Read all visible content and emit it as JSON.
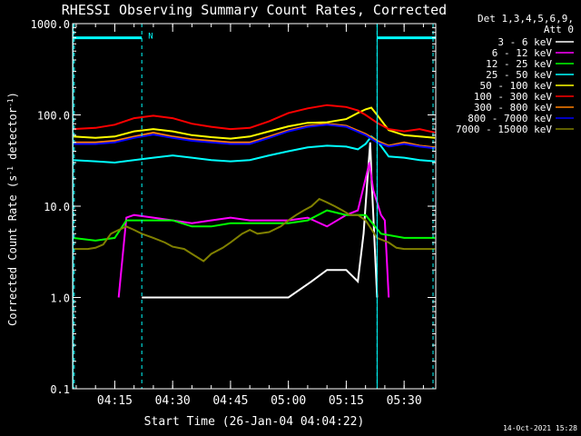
{
  "chart_data": {
    "type": "line",
    "title": "RHESSI Observing Summary Count Rates, Corrected",
    "xlabel": "Start Time (26-Jan-04 04:04:22)",
    "ylabel": "Corrected Count Rate (s⁻¹ detector⁻¹)",
    "ylabel_parts": [
      "Corrected Count Rate (s",
      "-1",
      " detector",
      "-1",
      ")"
    ],
    "y_scale": "log",
    "ylim": [
      0.1,
      1000
    ],
    "y_ticks": [
      0.1,
      1.0,
      10.0,
      100.0,
      1000.0
    ],
    "y_tick_labels": [
      "0.1",
      "1.0",
      "10.0",
      "100.0",
      "1000.0"
    ],
    "xlim_minutes": [
      4.07,
      98.2
    ],
    "x_ticks": [
      "04:15",
      "04:30",
      "04:45",
      "05:00",
      "05:15",
      "05:30"
    ],
    "x_tick_minutes": [
      15,
      30,
      45,
      60,
      75,
      90
    ],
    "legend_header": [
      "Det 1,3,4,5,6,9,",
      "Att 0"
    ],
    "flag_label": "N",
    "flag_bars_minutes": [
      [
        4.07,
        22
      ],
      [
        83,
        98.2
      ]
    ],
    "flag_level": 700,
    "dashed_markers_minutes": [
      4.5,
      22,
      83,
      97.5
    ],
    "solid_markers_minutes": [
      4.2,
      83
    ],
    "footer_stamp": "14-Oct-2021 15:28",
    "grid": false,
    "legend_position": "top-right",
    "series": [
      {
        "name": "3 - 6 keV",
        "color": "#ffffff",
        "points": [
          [
            22,
            1
          ],
          [
            30,
            1
          ],
          [
            45,
            1
          ],
          [
            60,
            1
          ],
          [
            66,
            1.5
          ],
          [
            70,
            2
          ],
          [
            75,
            2
          ],
          [
            78,
            1.5
          ],
          [
            79.5,
            5
          ],
          [
            80.5,
            20
          ],
          [
            81.2,
            50
          ],
          [
            81.6,
            18
          ],
          [
            82,
            8
          ],
          [
            83,
            1
          ]
        ]
      },
      {
        "name": "6 - 12 keV",
        "color": "#ff00ff",
        "points": [
          [
            16,
            1
          ],
          [
            18,
            7.5
          ],
          [
            20,
            8
          ],
          [
            25,
            7.5
          ],
          [
            30,
            7
          ],
          [
            35,
            6.5
          ],
          [
            40,
            7
          ],
          [
            45,
            7.5
          ],
          [
            50,
            7
          ],
          [
            55,
            7
          ],
          [
            60,
            7
          ],
          [
            65,
            7.5
          ],
          [
            70,
            6
          ],
          [
            75,
            8
          ],
          [
            78,
            9
          ],
          [
            80,
            20
          ],
          [
            81,
            30
          ],
          [
            82,
            15
          ],
          [
            84,
            8
          ],
          [
            85,
            7
          ],
          [
            86,
            1
          ]
        ]
      },
      {
        "name": "12 - 25 keV",
        "color": "#00ff00",
        "points": [
          [
            4.1,
            4.5
          ],
          [
            10,
            4.2
          ],
          [
            15,
            4.5
          ],
          [
            18,
            7
          ],
          [
            20,
            7
          ],
          [
            25,
            7
          ],
          [
            30,
            7
          ],
          [
            35,
            6
          ],
          [
            40,
            6
          ],
          [
            45,
            6.5
          ],
          [
            50,
            6.5
          ],
          [
            55,
            6.5
          ],
          [
            60,
            6.5
          ],
          [
            65,
            7
          ],
          [
            70,
            9
          ],
          [
            75,
            8
          ],
          [
            80,
            8
          ],
          [
            84,
            5
          ],
          [
            90,
            4.5
          ],
          [
            98,
            4.5
          ]
        ]
      },
      {
        "name": "25 - 50 keV",
        "color": "#00ffff",
        "points": [
          [
            4.1,
            32
          ],
          [
            10,
            31
          ],
          [
            15,
            30
          ],
          [
            20,
            32
          ],
          [
            25,
            34
          ],
          [
            30,
            36
          ],
          [
            35,
            34
          ],
          [
            40,
            32
          ],
          [
            45,
            31
          ],
          [
            50,
            32
          ],
          [
            55,
            36
          ],
          [
            60,
            40
          ],
          [
            65,
            44
          ],
          [
            70,
            46
          ],
          [
            75,
            45
          ],
          [
            78,
            42
          ],
          [
            80,
            48
          ],
          [
            81.5,
            58
          ],
          [
            83,
            52
          ],
          [
            86,
            35
          ],
          [
            90,
            34
          ],
          [
            94,
            32
          ],
          [
            98,
            31
          ]
        ]
      },
      {
        "name": "50 - 100 keV",
        "color": "#ffff00",
        "points": [
          [
            4.1,
            58
          ],
          [
            10,
            56
          ],
          [
            15,
            58
          ],
          [
            20,
            66
          ],
          [
            25,
            70
          ],
          [
            30,
            66
          ],
          [
            35,
            60
          ],
          [
            40,
            57
          ],
          [
            45,
            55
          ],
          [
            50,
            58
          ],
          [
            55,
            66
          ],
          [
            60,
            75
          ],
          [
            65,
            82
          ],
          [
            70,
            83
          ],
          [
            75,
            90
          ],
          [
            78,
            105
          ],
          [
            80,
            115
          ],
          [
            81.5,
            120
          ],
          [
            83,
            100
          ],
          [
            86,
            68
          ],
          [
            90,
            60
          ],
          [
            94,
            58
          ],
          [
            98,
            56
          ]
        ]
      },
      {
        "name": "100 - 300 keV",
        "color": "#ff0000",
        "points": [
          [
            4.1,
            70
          ],
          [
            10,
            72
          ],
          [
            15,
            78
          ],
          [
            20,
            92
          ],
          [
            25,
            98
          ],
          [
            30,
            92
          ],
          [
            35,
            80
          ],
          [
            40,
            74
          ],
          [
            45,
            70
          ],
          [
            50,
            72
          ],
          [
            55,
            85
          ],
          [
            60,
            105
          ],
          [
            65,
            118
          ],
          [
            70,
            128
          ],
          [
            75,
            122
          ],
          [
            78,
            112
          ],
          [
            80,
            100
          ],
          [
            83,
            82
          ],
          [
            86,
            70
          ],
          [
            90,
            66
          ],
          [
            94,
            70
          ],
          [
            98,
            64
          ]
        ]
      },
      {
        "name": "300 - 800 keV",
        "color": "#ff8000",
        "points": [
          [
            4.1,
            50
          ],
          [
            10,
            50
          ],
          [
            15,
            52
          ],
          [
            20,
            58
          ],
          [
            25,
            64
          ],
          [
            30,
            58
          ],
          [
            35,
            54
          ],
          [
            40,
            52
          ],
          [
            45,
            50
          ],
          [
            50,
            50
          ],
          [
            55,
            58
          ],
          [
            60,
            68
          ],
          [
            65,
            76
          ],
          [
            70,
            80
          ],
          [
            75,
            76
          ],
          [
            80,
            62
          ],
          [
            83,
            52
          ],
          [
            86,
            46
          ],
          [
            90,
            50
          ],
          [
            94,
            46
          ],
          [
            98,
            44
          ]
        ]
      },
      {
        "name": "800 - 7000 keV",
        "color": "#0000ff",
        "points": [
          [
            4.1,
            48
          ],
          [
            10,
            48
          ],
          [
            15,
            50
          ],
          [
            20,
            56
          ],
          [
            25,
            61
          ],
          [
            30,
            56
          ],
          [
            35,
            52
          ],
          [
            40,
            50
          ],
          [
            45,
            48
          ],
          [
            50,
            48
          ],
          [
            55,
            56
          ],
          [
            60,
            66
          ],
          [
            65,
            74
          ],
          [
            70,
            78
          ],
          [
            75,
            74
          ],
          [
            80,
            60
          ],
          [
            83,
            50
          ],
          [
            86,
            45
          ],
          [
            90,
            48
          ],
          [
            94,
            45
          ],
          [
            98,
            43
          ]
        ]
      },
      {
        "name": "7000 - 15000 keV",
        "color": "#808000",
        "points": [
          [
            4.1,
            3.4
          ],
          [
            8,
            3.4
          ],
          [
            10,
            3.5
          ],
          [
            12,
            3.8
          ],
          [
            14,
            5
          ],
          [
            16,
            5.5
          ],
          [
            18,
            6
          ],
          [
            20,
            5.5
          ],
          [
            22,
            5
          ],
          [
            25,
            4.5
          ],
          [
            28,
            4
          ],
          [
            30,
            3.6
          ],
          [
            33,
            3.4
          ],
          [
            35,
            3
          ],
          [
            38,
            2.5
          ],
          [
            40,
            3
          ],
          [
            43,
            3.5
          ],
          [
            45,
            4
          ],
          [
            48,
            5
          ],
          [
            50,
            5.5
          ],
          [
            52,
            5
          ],
          [
            55,
            5.2
          ],
          [
            58,
            6
          ],
          [
            60,
            7
          ],
          [
            62,
            8
          ],
          [
            64,
            9
          ],
          [
            66,
            10
          ],
          [
            68,
            12
          ],
          [
            70,
            11
          ],
          [
            72,
            10
          ],
          [
            74,
            9
          ],
          [
            76,
            8
          ],
          [
            78,
            8
          ],
          [
            80,
            7
          ],
          [
            83,
            4.5
          ],
          [
            86,
            4
          ],
          [
            88,
            3.5
          ],
          [
            90,
            3.4
          ],
          [
            94,
            3.4
          ],
          [
            98,
            3.4
          ]
        ]
      }
    ]
  }
}
